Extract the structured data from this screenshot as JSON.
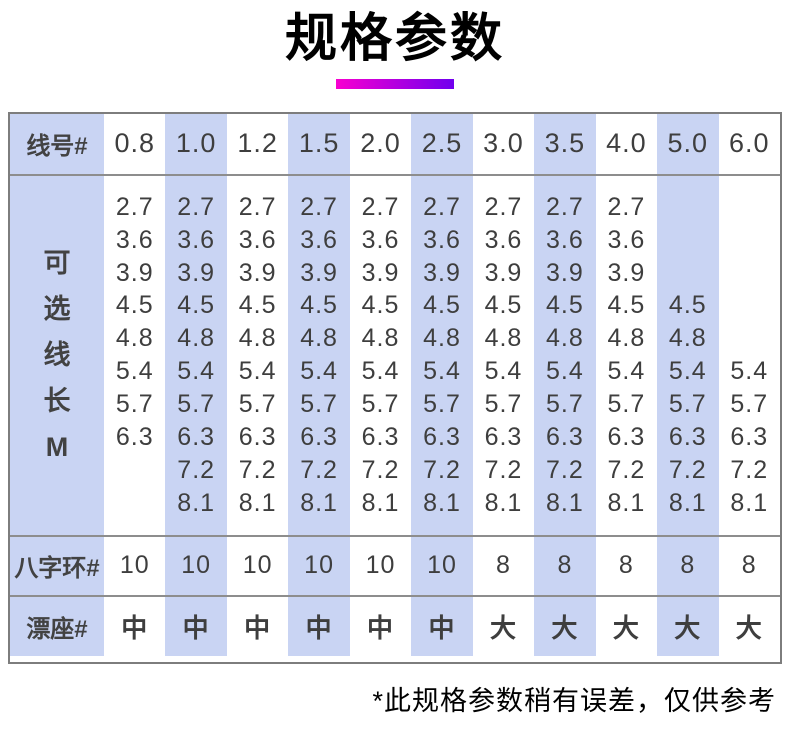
{
  "page": {
    "title": "规格参数",
    "footnote": "*此规格参数稍有误差，仅供参考"
  },
  "colors": {
    "stripe": "#c9d4f3",
    "border_outer": "#7d7d7d",
    "border_inner": "#8d8d8d",
    "text": "#3e3e3e",
    "accent_gradient_start": "#f800d0",
    "accent_gradient_end": "#7000ee"
  },
  "table": {
    "row_labels": {
      "line_no": "线号#",
      "length_chars": [
        "可",
        "选",
        "线",
        "长",
        "M"
      ],
      "ring": "八字环#",
      "seat": "漂座#"
    },
    "length_rows": [
      "2.7",
      "3.6",
      "3.9",
      "4.5",
      "4.8",
      "5.4",
      "5.7",
      "6.3",
      "7.2",
      "8.1"
    ],
    "columns": [
      {
        "size": "0.8",
        "shaded": false,
        "lengths": [
          "2.7",
          "3.6",
          "3.9",
          "4.5",
          "4.8",
          "5.4",
          "5.7",
          "6.3",
          "",
          ""
        ],
        "ring": "10",
        "seat": "中"
      },
      {
        "size": "1.0",
        "shaded": true,
        "lengths": [
          "2.7",
          "3.6",
          "3.9",
          "4.5",
          "4.8",
          "5.4",
          "5.7",
          "6.3",
          "7.2",
          "8.1"
        ],
        "ring": "10",
        "seat": "中"
      },
      {
        "size": "1.2",
        "shaded": false,
        "lengths": [
          "2.7",
          "3.6",
          "3.9",
          "4.5",
          "4.8",
          "5.4",
          "5.7",
          "6.3",
          "7.2",
          "8.1"
        ],
        "ring": "10",
        "seat": "中"
      },
      {
        "size": "1.5",
        "shaded": true,
        "lengths": [
          "2.7",
          "3.6",
          "3.9",
          "4.5",
          "4.8",
          "5.4",
          "5.7",
          "6.3",
          "7.2",
          "8.1"
        ],
        "ring": "10",
        "seat": "中"
      },
      {
        "size": "2.0",
        "shaded": false,
        "lengths": [
          "2.7",
          "3.6",
          "3.9",
          "4.5",
          "4.8",
          "5.4",
          "5.7",
          "6.3",
          "7.2",
          "8.1"
        ],
        "ring": "10",
        "seat": "中"
      },
      {
        "size": "2.5",
        "shaded": true,
        "lengths": [
          "2.7",
          "3.6",
          "3.9",
          "4.5",
          "4.8",
          "5.4",
          "5.7",
          "6.3",
          "7.2",
          "8.1"
        ],
        "ring": "10",
        "seat": "中"
      },
      {
        "size": "3.0",
        "shaded": false,
        "lengths": [
          "2.7",
          "3.6",
          "3.9",
          "4.5",
          "4.8",
          "5.4",
          "5.7",
          "6.3",
          "7.2",
          "8.1"
        ],
        "ring": "8",
        "seat": "大"
      },
      {
        "size": "3.5",
        "shaded": true,
        "lengths": [
          "2.7",
          "3.6",
          "3.9",
          "4.5",
          "4.8",
          "5.4",
          "5.7",
          "6.3",
          "7.2",
          "8.1"
        ],
        "ring": "8",
        "seat": "大"
      },
      {
        "size": "4.0",
        "shaded": false,
        "lengths": [
          "2.7",
          "3.6",
          "3.9",
          "4.5",
          "4.8",
          "5.4",
          "5.7",
          "6.3",
          "7.2",
          "8.1"
        ],
        "ring": "8",
        "seat": "大"
      },
      {
        "size": "5.0",
        "shaded": true,
        "lengths": [
          "",
          "",
          "",
          "4.5",
          "4.8",
          "5.4",
          "5.7",
          "6.3",
          "7.2",
          "8.1"
        ],
        "ring": "8",
        "seat": "大"
      },
      {
        "size": "6.0",
        "shaded": false,
        "lengths": [
          "",
          "",
          "",
          "",
          "",
          "5.4",
          "5.7",
          "6.3",
          "7.2",
          "8.1"
        ],
        "ring": "8",
        "seat": "大"
      }
    ]
  }
}
